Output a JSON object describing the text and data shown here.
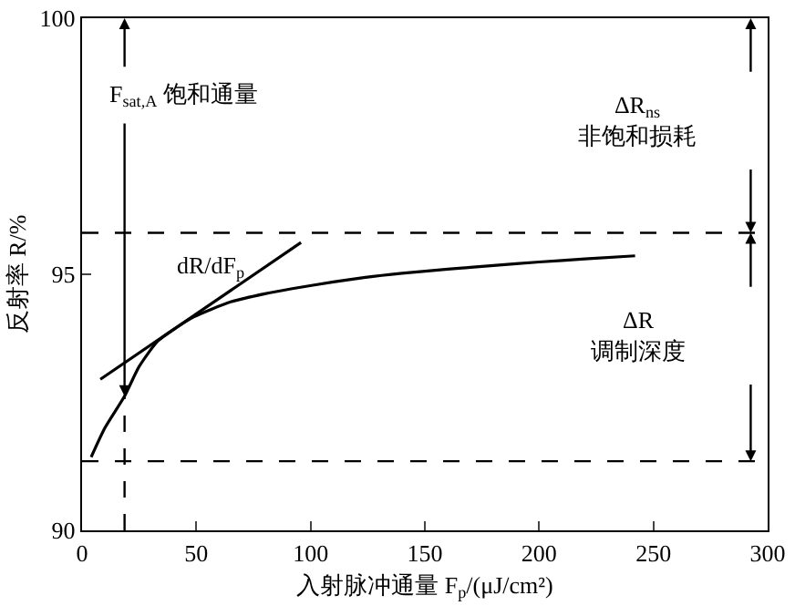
{
  "chart_data": {
    "type": "line",
    "xlabel": "入射脉冲通量 F$_{p}$/(μJ/cm²)",
    "ylabel": "反射率 R/%",
    "xlim": [
      0,
      300
    ],
    "xticks": [
      0,
      50,
      100,
      150,
      200,
      250,
      300
    ],
    "ylim": [
      90,
      100
    ],
    "yticks": [
      90,
      95,
      100
    ],
    "grid": false,
    "marker": "none",
    "line_style": "solid",
    "series": [
      {
        "color": "#000000",
        "x": [
          4,
          10,
          18.6,
          25,
          33,
          41,
          49,
          65,
          80,
          92,
          110,
          124,
          140,
          160,
          180,
          200,
          220,
          242
        ],
        "values": [
          91.43,
          92.0,
          92.62,
          93.2,
          93.69,
          93.95,
          94.17,
          94.46,
          94.62,
          94.72,
          94.85,
          94.94,
          95.02,
          95.1,
          95.17,
          95.24,
          95.3,
          95.36
        ]
      },
      {
        "type": "line",
        "color": "#000000",
        "x": [
          8,
          95.8
        ],
        "values": [
          92.95,
          95.62
        ]
      }
    ],
    "ref_lines": [
      {
        "axis": "y",
        "value": 95.81,
        "color": "#000000",
        "line_style": "dashed"
      },
      {
        "axis": "y",
        "value": 91.35,
        "color": "#000000",
        "line_style": "dashed"
      },
      {
        "axis": "x",
        "value": 18.6,
        "color": "#000000",
        "line_style": "dashed"
      }
    ],
    "annotations": [
      "F$_{sat,A}$ 饱和通量",
      "dR/dF$_{p}$",
      "ΔR$_{ns}$\n非饱和损耗",
      "ΔR\n调制深度"
    ]
  }
}
